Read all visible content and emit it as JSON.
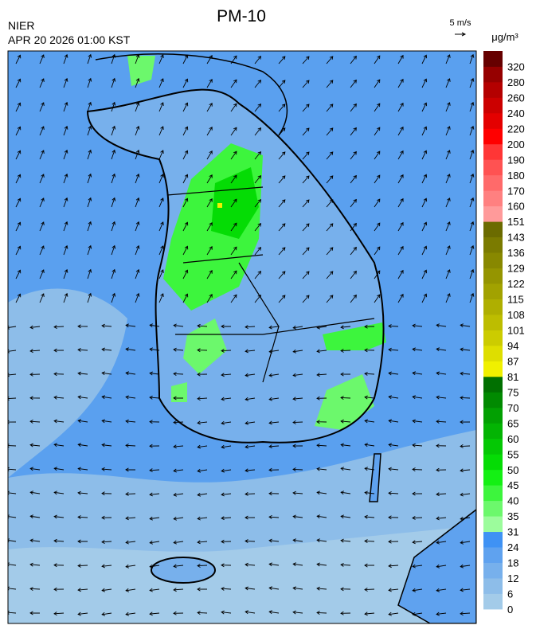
{
  "header": {
    "title": "PM-10",
    "agency": "NIER",
    "timestamp": "APR 20 2026 01:00 KST",
    "wind_scale": "5 m/s"
  },
  "legend": {
    "unit": "μg/m³",
    "labels": [
      "0",
      "6",
      "12",
      "18",
      "24",
      "31",
      "35",
      "40",
      "45",
      "50",
      "55",
      "60",
      "65",
      "70",
      "75",
      "81",
      "87",
      "94",
      "101",
      "108",
      "115",
      "122",
      "129",
      "136",
      "143",
      "151",
      "160",
      "170",
      "180",
      "190",
      "200",
      "220",
      "240",
      "260",
      "280",
      "320"
    ],
    "colors": [
      "#a3cbe9",
      "#8dbde9",
      "#77b0ec",
      "#5fa2ef",
      "#3f92f4",
      "#9cfc9c",
      "#6cf86c",
      "#3df53d",
      "#14f014",
      "#05dc05",
      "#04c804",
      "#03b403",
      "#02a002",
      "#018a01",
      "#017001",
      "#f0f000",
      "#dede00",
      "#cccc00",
      "#bdbd00",
      "#afaf00",
      "#a2a200",
      "#959500",
      "#888800",
      "#7b7b00",
      "#6b6b00",
      "#ff9a9a",
      "#ff8080",
      "#ff6a6a",
      "#ff5252",
      "#ff3636",
      "#ff0000",
      "#e40000",
      "#cc0000",
      "#b40000",
      "#960000",
      "#660000"
    ]
  }
}
